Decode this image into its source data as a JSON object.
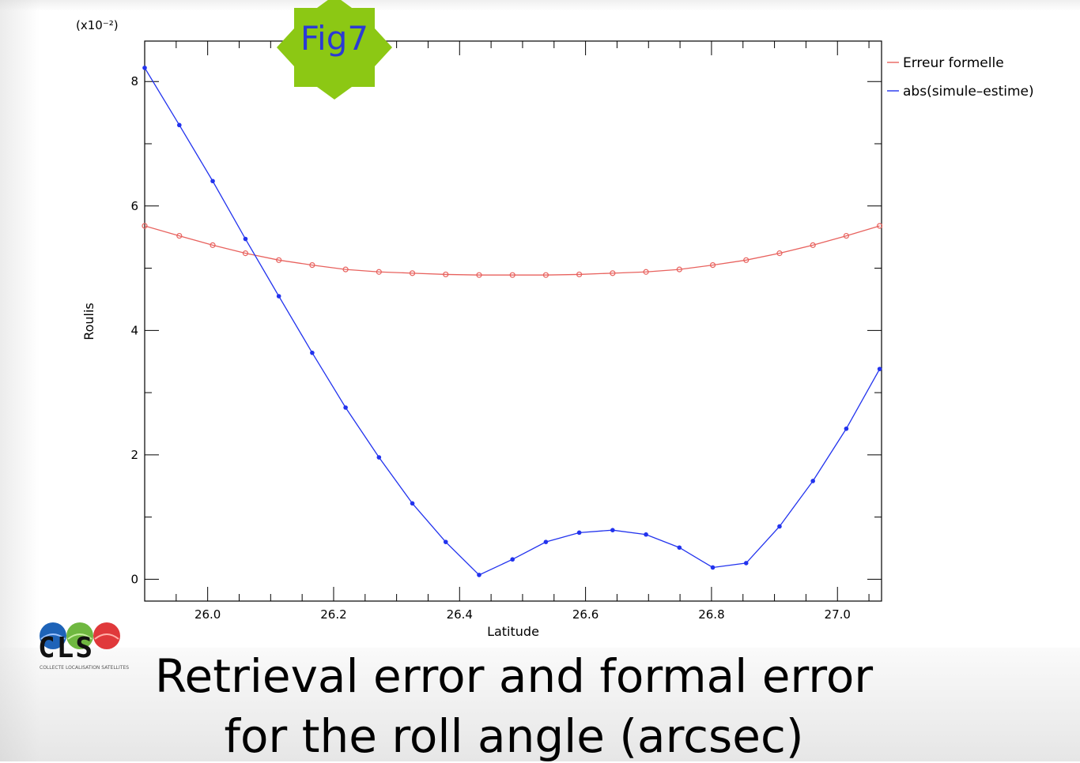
{
  "badge": {
    "label": "Fig7",
    "color": "#8cc814",
    "text_color": "#2b3ad6"
  },
  "caption": {
    "line1": "Retrieval error and formal error",
    "line2": "for the roll angle (arcsec)"
  },
  "logo": {
    "label": "CLS",
    "subtitle": "COLLECTE LOCALISATION SATELLITES"
  },
  "chart_data": {
    "type": "line",
    "title": "",
    "xlabel": "Latitude",
    "ylabel": "Roulis",
    "y_multiplier": "(x10⁻²)",
    "xlim": [
      25.9,
      27.07
    ],
    "ylim": [
      -0.35,
      8.65
    ],
    "xticks": [
      "26.0",
      "26.2",
      "26.4",
      "26.6",
      "26.8",
      "27.0"
    ],
    "xtick_values": [
      26.0,
      26.2,
      26.4,
      26.6,
      26.8,
      27.0
    ],
    "yticks": [
      "0",
      "2",
      "4",
      "6",
      "8"
    ],
    "ytick_values": [
      0,
      2,
      4,
      6,
      8
    ],
    "legend_position": "top-right, outside plot",
    "series": [
      {
        "name": "Erreur formelle",
        "color": "#e8625e",
        "marker": "circle",
        "x": [
          25.9,
          25.955,
          26.008,
          26.06,
          26.113,
          26.166,
          26.219,
          26.272,
          26.325,
          26.378,
          26.431,
          26.484,
          26.537,
          26.59,
          26.643,
          26.696,
          26.749,
          26.802,
          26.855,
          26.908,
          26.961,
          27.014,
          27.067
        ],
        "values": [
          5.68,
          5.52,
          5.37,
          5.24,
          5.13,
          5.05,
          4.98,
          4.94,
          4.92,
          4.9,
          4.89,
          4.89,
          4.89,
          4.9,
          4.92,
          4.94,
          4.98,
          5.05,
          5.13,
          5.24,
          5.37,
          5.52,
          5.68
        ]
      },
      {
        "name": "abs(simule–estime)",
        "color": "#2233ee",
        "marker": "dot",
        "x": [
          25.9,
          25.955,
          26.008,
          26.06,
          26.113,
          26.166,
          26.219,
          26.272,
          26.325,
          26.378,
          26.431,
          26.484,
          26.537,
          26.59,
          26.643,
          26.696,
          26.749,
          26.802,
          26.855,
          26.908,
          26.961,
          27.014,
          27.067
        ],
        "values": [
          8.22,
          7.3,
          6.4,
          5.47,
          4.55,
          3.64,
          2.76,
          1.96,
          1.22,
          0.6,
          0.07,
          0.32,
          0.6,
          0.75,
          0.79,
          0.72,
          0.51,
          0.19,
          0.26,
          0.85,
          1.58,
          2.42,
          3.38
        ]
      }
    ]
  }
}
